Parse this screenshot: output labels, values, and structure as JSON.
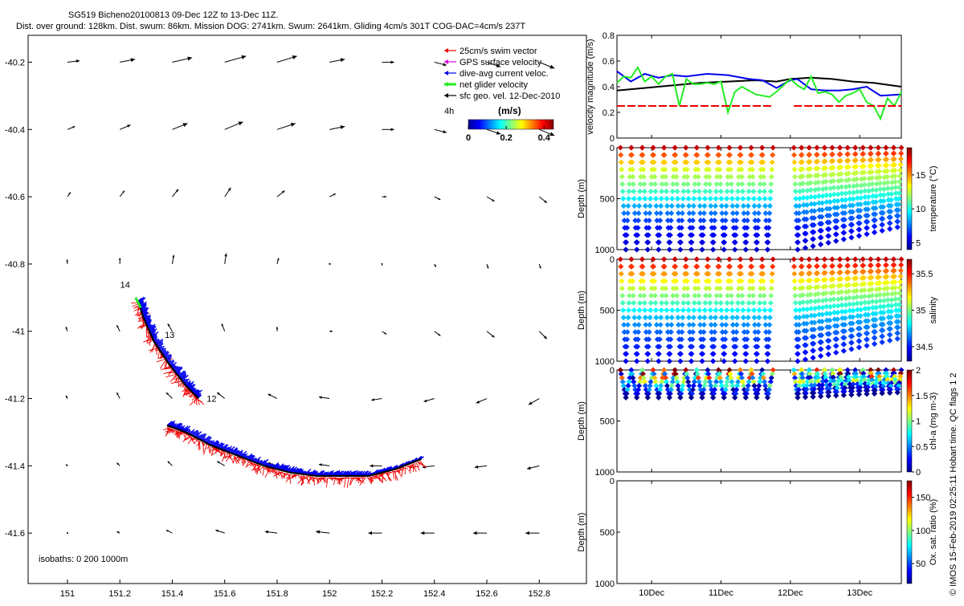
{
  "header": {
    "line1": "SG519 Bicheno20100813 09-Dec 12Z to 13-Dec 11Z.",
    "line2": "Dist. over ground: 128km. Dist. swum: 86km. Mission DOG: 2741km. Swum: 2641km. Gliding 4cm/s 301T COG-DAC=4cm/s 237T"
  },
  "side_note": "© IMOS 15-Feb-2019 02:25:11 Hobart time. QC flags 1  2",
  "colors": {
    "swim": "#ee0000",
    "gps": "#dd00dd",
    "dac": "#0000ee",
    "net": "#22ee22",
    "sfc": "#000000",
    "mission_dog": "#000000"
  },
  "chart_data": [
    {
      "id": "map",
      "type": "quiver",
      "xlim": [
        150.85,
        152.98
      ],
      "ylim": [
        -41.75,
        -40.12
      ],
      "xticks": [
        151,
        151.2,
        151.4,
        151.6,
        151.8,
        152,
        152.2,
        152.4,
        152.6,
        152.8
      ],
      "yticks": [
        -40.2,
        -40.4,
        -40.6,
        -40.8,
        -41,
        -41.2,
        -41.4,
        -41.6
      ],
      "legend": [
        {
          "label": "25cm/s swim vector",
          "color": "#ee0000"
        },
        {
          "label": "GPS surface velocity",
          "color": "#dd00dd"
        },
        {
          "label": "dive-avg current veloc.",
          "color": "#0000ee"
        },
        {
          "label": "net glider velocity",
          "color": "#22ee22"
        },
        {
          "label": "sfc geo. vel. 12-Dec-2010",
          "color": "#000000"
        }
      ],
      "scale_label": "4h",
      "colorbar": {
        "label": "(m/s)",
        "ticks": [
          "0",
          "0.2",
          "0.4"
        ],
        "range": [
          0,
          0.45
        ]
      },
      "isobaths_label": "isobaths: 0   200  1000m",
      "day_labels": [
        {
          "text": "14",
          "lon": 151.22,
          "lat": -40.87
        },
        {
          "text": "13",
          "lon": 151.39,
          "lat": -41.02
        },
        {
          "text": "12",
          "lon": 151.55,
          "lat": -41.21
        }
      ],
      "track_segments": [
        [
          [
            151.27,
            -40.91
          ],
          [
            151.29,
            -40.96
          ],
          [
            151.33,
            -41.03
          ],
          [
            151.39,
            -41.1
          ],
          [
            151.45,
            -41.16
          ],
          [
            151.5,
            -41.2
          ]
        ],
        [
          [
            151.38,
            -41.28
          ],
          [
            151.45,
            -41.3
          ],
          [
            151.55,
            -41.34
          ],
          [
            151.65,
            -41.37
          ],
          [
            151.75,
            -41.4
          ],
          [
            151.85,
            -41.42
          ],
          [
            151.95,
            -41.43
          ],
          [
            152.05,
            -41.43
          ],
          [
            152.15,
            -41.43
          ],
          [
            152.25,
            -41.41
          ],
          [
            152.35,
            -41.38
          ]
        ]
      ],
      "net_segment": [
        [
          151.26,
          -40.9
        ],
        [
          151.28,
          -40.93
        ]
      ],
      "vector_field": {
        "lons": [
          151,
          151.2,
          151.4,
          151.6,
          151.8,
          152,
          152.2,
          152.4,
          152.6,
          152.8
        ],
        "lats": [
          -40.2,
          -40.4,
          -40.6,
          -40.8,
          -41,
          -41.2,
          -41.4,
          -41.6
        ],
        "u": [
          [
            0.08,
            0.1,
            0.13,
            0.14,
            0.13,
            0.1,
            0.08,
            0.08,
            0.09,
            0.1
          ],
          [
            0.05,
            0.07,
            0.1,
            0.12,
            0.12,
            0.1,
            0.08,
            0.08,
            0.09,
            0.1
          ],
          [
            0.02,
            0.03,
            0.04,
            0.04,
            0.05,
            0.04,
            0.03,
            0.04,
            0.05,
            0.05
          ],
          [
            -0.002,
            0,
            0.01,
            0.01,
            0.01,
            0.01,
            0,
            0.01,
            0.01,
            0.01
          ],
          [
            -0.01,
            -0.02,
            -0.03,
            -0.02,
            0,
            0.02,
            0.03,
            0.04,
            0.05,
            0.05
          ],
          [
            -0.01,
            -0.02,
            -0.04,
            -0.05,
            -0.06,
            -0.07,
            -0.07,
            -0.07,
            -0.07,
            -0.07
          ],
          [
            -0.01,
            -0.02,
            -0.03,
            -0.05,
            -0.06,
            -0.07,
            -0.08,
            -0.08,
            -0.08,
            -0.08
          ],
          [
            -0.005,
            -0.02,
            -0.04,
            -0.06,
            -0.08,
            -0.09,
            -0.09,
            -0.09,
            -0.09,
            -0.09
          ]
        ],
        "v": [
          [
            0.01,
            0.02,
            0.03,
            0.04,
            0.04,
            0.02,
            0.0,
            -0.02,
            -0.03,
            -0.04
          ],
          [
            0.02,
            0.03,
            0.04,
            0.05,
            0.04,
            0.02,
            0.0,
            -0.02,
            -0.03,
            -0.04
          ],
          [
            0.03,
            0.04,
            0.05,
            0.06,
            0.04,
            0.02,
            0.0,
            -0.02,
            -0.03,
            -0.04
          ],
          [
            0.03,
            0.04,
            0.06,
            0.07,
            0.04,
            0.0,
            -0.01,
            -0.02,
            -0.03,
            -0.03
          ],
          [
            0.03,
            0.04,
            0.05,
            0.05,
            0.03,
            0.0,
            -0.02,
            -0.03,
            -0.04,
            -0.05
          ],
          [
            0.02,
            0.04,
            0.04,
            0.04,
            0.03,
            0.01,
            -0.01,
            -0.02,
            -0.03,
            -0.04
          ],
          [
            0.01,
            0.02,
            0.03,
            0.03,
            0.02,
            0.01,
            0.0,
            -0.01,
            -0.01,
            -0.02
          ],
          [
            0.0,
            0.01,
            0.02,
            0.02,
            0.01,
            0.01,
            0.0,
            0.0,
            0.0,
            0.0
          ]
        ]
      }
    },
    {
      "id": "velocity",
      "type": "line",
      "ylabel": "velocity magnitude (m/s)",
      "ylim": [
        0,
        0.8
      ],
      "yticks": [
        0,
        0.2,
        0.4,
        0.6,
        0.8
      ],
      "x_ticks": [
        10,
        11,
        12,
        13
      ],
      "x_tick_labels": [
        "10Dec",
        "11Dec",
        "12Dec",
        "13Dec"
      ],
      "xlim": [
        9.5,
        13.6
      ],
      "series": [
        {
          "color": "#000000",
          "x": [
            9.5,
            9.9,
            10.3,
            10.7,
            11.1,
            11.5,
            11.8,
            12.0,
            12.3,
            12.6,
            12.9,
            13.2,
            13.6
          ],
          "y": [
            0.37,
            0.39,
            0.41,
            0.43,
            0.44,
            0.45,
            0.44,
            0.46,
            0.47,
            0.46,
            0.44,
            0.43,
            0.4
          ]
        },
        {
          "color": "#0000ee",
          "x": [
            9.5,
            9.7,
            9.9,
            10.1,
            10.3,
            10.5,
            10.8,
            11.1,
            11.4,
            11.6,
            11.8,
            12.0,
            12.1,
            12.3,
            12.5,
            12.7,
            12.9,
            13.1,
            13.3,
            13.6
          ],
          "y": [
            0.52,
            0.44,
            0.5,
            0.47,
            0.49,
            0.48,
            0.5,
            0.49,
            0.46,
            0.45,
            0.39,
            0.45,
            0.46,
            0.38,
            0.37,
            0.37,
            0.38,
            0.4,
            0.33,
            0.34
          ]
        },
        {
          "color": "#22ee22",
          "x": [
            9.5,
            9.6,
            9.7,
            9.8,
            9.9,
            10.0,
            10.1,
            10.2,
            10.3,
            10.4,
            10.5,
            10.6,
            10.7,
            10.8,
            10.9,
            11.0,
            11.1,
            11.2,
            11.3,
            11.5,
            11.7,
            11.8,
            12.0,
            12.1,
            12.2,
            12.3,
            12.4,
            12.5,
            12.6,
            12.7,
            12.8,
            12.9,
            13.0,
            13.1,
            13.2,
            13.3,
            13.4,
            13.5,
            13.6
          ],
          "y": [
            0.43,
            0.48,
            0.47,
            0.55,
            0.44,
            0.48,
            0.42,
            0.48,
            0.5,
            0.25,
            0.46,
            0.42,
            0.42,
            0.43,
            0.42,
            0.44,
            0.2,
            0.36,
            0.4,
            0.34,
            0.32,
            0.36,
            0.46,
            0.41,
            0.38,
            0.48,
            0.35,
            0.36,
            0.34,
            0.28,
            0.33,
            0.35,
            0.38,
            0.28,
            0.25,
            0.15,
            0.31,
            0.25,
            0.36
          ]
        },
        {
          "color": "#ee0000",
          "x": [
            9.5,
            11.75
          ],
          "y": [
            0.25,
            0.25
          ],
          "dashed": true
        },
        {
          "color": "#ee0000",
          "x": [
            12.05,
            13.6
          ],
          "y": [
            0.25,
            0.25
          ],
          "dashed": true
        }
      ]
    },
    {
      "id": "temperature",
      "type": "scatter",
      "ylabel": "Depth (m)",
      "colorbar_label": "temperature (°C)",
      "yticks": [
        0,
        500,
        1000
      ],
      "ylim": [
        0,
        1000
      ],
      "xlim": [
        9.5,
        13.6
      ],
      "cbar_ticks": [
        5,
        10,
        15
      ],
      "cbar_range": [
        4,
        19
      ],
      "dives": {
        "start": 9.55,
        "end": 11.75,
        "n": 14,
        "start2": 12.05,
        "end2": 13.6,
        "n2": 14,
        "max_depth": 1000,
        "max_depth2_end": 780
      },
      "profile_values": [
        [
          0,
          18
        ],
        [
          100,
          15
        ],
        [
          200,
          13
        ],
        [
          400,
          11
        ],
        [
          600,
          8
        ],
        [
          800,
          6
        ],
        [
          1000,
          5
        ]
      ]
    },
    {
      "id": "salinity",
      "type": "scatter",
      "ylabel": "Depth (m)",
      "colorbar_label": "salinity",
      "yticks": [
        0,
        500,
        1000
      ],
      "ylim": [
        0,
        1000
      ],
      "xlim": [
        9.5,
        13.6
      ],
      "cbar_ticks": [
        34.5,
        35,
        35.5
      ],
      "cbar_range": [
        34.3,
        35.7
      ],
      "dives": {
        "start": 9.55,
        "end": 11.75,
        "n": 14,
        "start2": 12.05,
        "end2": 13.6,
        "n2": 14,
        "max_depth": 1000,
        "max_depth2_end": 780
      },
      "profile_values": [
        [
          0,
          35.6
        ],
        [
          100,
          35.4
        ],
        [
          200,
          35.2
        ],
        [
          400,
          34.95
        ],
        [
          600,
          34.7
        ],
        [
          800,
          34.55
        ],
        [
          1000,
          34.45
        ]
      ]
    },
    {
      "id": "chla",
      "type": "scatter",
      "ylabel": "Depth (m)",
      "colorbar_label": "chl-a (mg m-3)",
      "yticks": [
        0,
        500,
        1000
      ],
      "ylim": [
        0,
        1000
      ],
      "xlim": [
        9.5,
        13.6
      ],
      "cbar_ticks": [
        0,
        0.5,
        1,
        1.5,
        2
      ],
      "cbar_range": [
        0,
        2
      ],
      "dives": {
        "start": 9.55,
        "end": 11.75,
        "n": 14,
        "start2": 12.05,
        "end2": 13.6,
        "n2": 14,
        "max_depth": 270,
        "max_depth2_end": 220
      }
    },
    {
      "id": "oxygen",
      "type": "scatter",
      "ylabel": "Depth (m)",
      "colorbar_label": "Ox. sat. ratio (%)",
      "yticks": [
        0,
        500,
        1000
      ],
      "ylim": [
        0,
        1000
      ],
      "xlim": [
        9.5,
        13.6
      ],
      "x_tick_labels": [
        "10Dec",
        "11Dec",
        "12Dec",
        "13Dec"
      ],
      "cbar_ticks": [
        50,
        100,
        150
      ],
      "cbar_range": [
        20,
        175
      ]
    }
  ]
}
